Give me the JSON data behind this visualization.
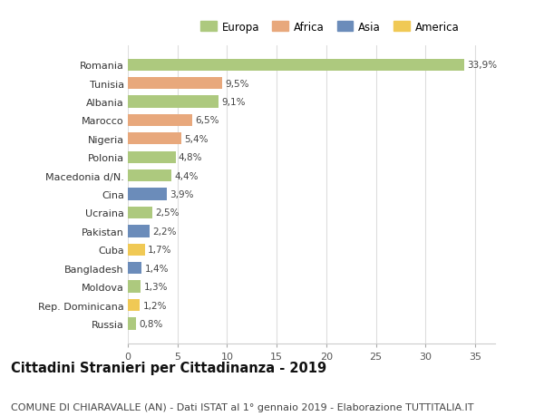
{
  "countries": [
    "Romania",
    "Tunisia",
    "Albania",
    "Marocco",
    "Nigeria",
    "Polonia",
    "Macedonia d/N.",
    "Cina",
    "Ucraina",
    "Pakistan",
    "Cuba",
    "Bangladesh",
    "Moldova",
    "Rep. Dominicana",
    "Russia"
  ],
  "values": [
    33.9,
    9.5,
    9.1,
    6.5,
    5.4,
    4.8,
    4.4,
    3.9,
    2.5,
    2.2,
    1.7,
    1.4,
    1.3,
    1.2,
    0.8
  ],
  "labels": [
    "33,9%",
    "9,5%",
    "9,1%",
    "6,5%",
    "5,4%",
    "4,8%",
    "4,4%",
    "3,9%",
    "2,5%",
    "2,2%",
    "1,7%",
    "1,4%",
    "1,3%",
    "1,2%",
    "0,8%"
  ],
  "continents": [
    "Europa",
    "Africa",
    "Europa",
    "Africa",
    "Africa",
    "Europa",
    "Europa",
    "Asia",
    "Europa",
    "Asia",
    "America",
    "Asia",
    "Europa",
    "America",
    "Europa"
  ],
  "colors": {
    "Europa": "#adc97e",
    "Africa": "#e8a87c",
    "Asia": "#6b8cba",
    "America": "#f0c955"
  },
  "legend_order": [
    "Europa",
    "Africa",
    "Asia",
    "America"
  ],
  "title": "Cittadini Stranieri per Cittadinanza - 2019",
  "subtitle": "COMUNE DI CHIARAVALLE (AN) - Dati ISTAT al 1° gennaio 2019 - Elaborazione TUTTITALIA.IT",
  "xlim": [
    0,
    37
  ],
  "xticks": [
    0,
    5,
    10,
    15,
    20,
    25,
    30,
    35
  ],
  "background_color": "#ffffff",
  "grid_color": "#dddddd",
  "bar_height": 0.65,
  "title_fontsize": 10.5,
  "subtitle_fontsize": 8,
  "label_fontsize": 7.5,
  "tick_fontsize": 8,
  "legend_fontsize": 8.5
}
